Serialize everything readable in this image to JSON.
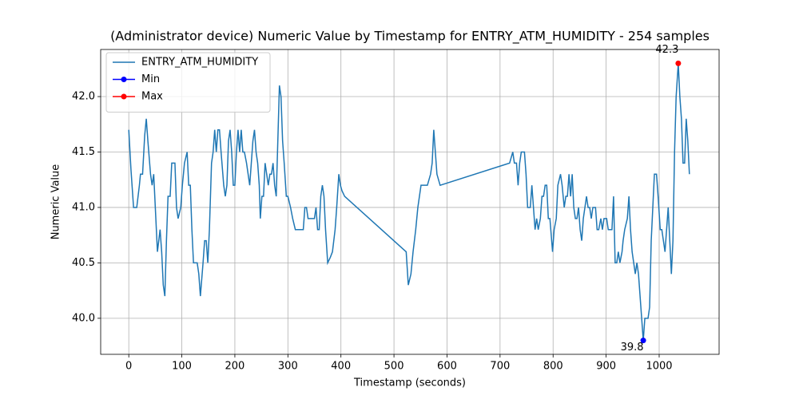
{
  "chart_data": {
    "type": "line",
    "title": "(Administrator device) Numeric Value by Timestamp for ENTRY_ATM_HUMIDITY - 254 samples",
    "xlabel": "Timestamp (seconds)",
    "ylabel": "Numeric Value",
    "xlim": [
      -53,
      1113
    ],
    "ylim": [
      39.675,
      42.425
    ],
    "xticks": [
      0,
      100,
      200,
      300,
      400,
      500,
      600,
      700,
      800,
      900,
      1000
    ],
    "yticks": [
      {
        "value": 40,
        "label": "40.0"
      },
      40.5,
      {
        "value": 41,
        "label": "41.0"
      },
      41.5,
      {
        "value": 42,
        "label": "42.0"
      }
    ],
    "grid": true,
    "legend": "upper left",
    "series": [
      {
        "name": "ENTRY_ATM_HUMIDITY",
        "color": "#1f77b4",
        "marker": false,
        "x": [
          0,
          4,
          9,
          15,
          20,
          22,
          26,
          30,
          33,
          36,
          41,
          44,
          47,
          50,
          54,
          59,
          62,
          65,
          68,
          71,
          74,
          78,
          81,
          87,
          90,
          93,
          98,
          101,
          105,
          110,
          113,
          116,
          119,
          122,
          129,
          132,
          135,
          140,
          143,
          146,
          149,
          152,
          156,
          159,
          162,
          165,
          168,
          171,
          174,
          179,
          182,
          185,
          188,
          191,
          194,
          197,
          200,
          203,
          206,
          209,
          212,
          215,
          218,
          222,
          225,
          228,
          231,
          234,
          237,
          240,
          243,
          246,
          248,
          251,
          254,
          257,
          260,
          263,
          266,
          269,
          272,
          275,
          278,
          281,
          284,
          287,
          290,
          293,
          297,
          300,
          305,
          309,
          314,
          329,
          332,
          335,
          338,
          350,
          353,
          356,
          359,
          362,
          365,
          368,
          371,
          375,
          380,
          384,
          389,
          392,
          396,
          399,
          402,
          407,
          523,
          527,
          532,
          536,
          541,
          545,
          551,
          563,
          569,
          572,
          575,
          578,
          581,
          587,
          718,
          724,
          727,
          731,
          734,
          737,
          740,
          746,
          749,
          752,
          757,
          760,
          763,
          766,
          769,
          772,
          776,
          779,
          782,
          785,
          788,
          791,
          794,
          799,
          802,
          806,
          809,
          814,
          817,
          821,
          824,
          827,
          830,
          833,
          836,
          839,
          842,
          845,
          848,
          851,
          854,
          857,
          860,
          863,
          866,
          869,
          872,
          875,
          880,
          883,
          886,
          890,
          893,
          896,
          901,
          904,
          908,
          911,
          914,
          917,
          920,
          923,
          926,
          930,
          932,
          935,
          940,
          943,
          946,
          949,
          952,
          955,
          958,
          961,
          964,
          967,
          970,
          973,
          979,
          982,
          985,
          988,
          991,
          995,
          998,
          1002,
          1005,
          1008,
          1011,
          1014,
          1017,
          1020,
          1023,
          1026,
          1029,
          1032,
          1036,
          1039,
          1042,
          1045,
          1048,
          1051,
          1054,
          1057
        ],
        "values": [
          41.7,
          41.35,
          41.0,
          41.0,
          41.2,
          41.3,
          41.3,
          41.65,
          41.8,
          41.6,
          41.3,
          41.2,
          41.3,
          41.0,
          40.6,
          40.8,
          40.6,
          40.3,
          40.2,
          40.7,
          41.1,
          41.1,
          41.4,
          41.4,
          41.0,
          40.9,
          41.0,
          41.2,
          41.4,
          41.5,
          41.2,
          41.2,
          40.8,
          40.5,
          40.5,
          40.4,
          40.2,
          40.5,
          40.7,
          40.7,
          40.5,
          40.8,
          41.4,
          41.5,
          41.7,
          41.5,
          41.7,
          41.7,
          41.5,
          41.2,
          41.1,
          41.2,
          41.6,
          41.7,
          41.5,
          41.2,
          41.2,
          41.5,
          41.7,
          41.5,
          41.7,
          41.5,
          41.5,
          41.4,
          41.3,
          41.2,
          41.4,
          41.6,
          41.7,
          41.5,
          41.4,
          41.2,
          40.9,
          41.1,
          41.1,
          41.4,
          41.3,
          41.2,
          41.3,
          41.3,
          41.4,
          41.2,
          41.1,
          41.6,
          42.1,
          42.0,
          41.6,
          41.4,
          41.1,
          41.1,
          41.0,
          40.9,
          40.8,
          40.8,
          41.0,
          41.0,
          40.9,
          40.9,
          41.0,
          40.8,
          40.8,
          41.1,
          41.2,
          41.1,
          40.8,
          40.5,
          40.55,
          40.6,
          40.8,
          41.0,
          41.3,
          41.2,
          41.15,
          41.1,
          40.6,
          40.3,
          40.4,
          40.6,
          40.8,
          41.0,
          41.2,
          41.2,
          41.3,
          41.4,
          41.7,
          41.5,
          41.3,
          41.2,
          41.4,
          41.5,
          41.4,
          41.4,
          41.2,
          41.4,
          41.5,
          41.5,
          41.3,
          41.0,
          41.0,
          41.2,
          41.0,
          40.8,
          40.9,
          40.8,
          40.9,
          41.1,
          41.1,
          41.2,
          41.2,
          40.9,
          40.9,
          40.6,
          40.8,
          40.9,
          41.2,
          41.3,
          41.2,
          41.0,
          41.1,
          41.1,
          41.3,
          41.1,
          41.3,
          41.0,
          40.9,
          40.9,
          41.0,
          40.8,
          40.7,
          40.9,
          41.0,
          41.1,
          41.0,
          41.0,
          40.9,
          41.0,
          41.0,
          40.8,
          40.8,
          40.9,
          40.8,
          40.9,
          40.9,
          40.8,
          40.8,
          40.8,
          41.1,
          40.5,
          40.5,
          40.6,
          40.5,
          40.6,
          40.7,
          40.8,
          40.9,
          41.1,
          40.8,
          40.6,
          40.5,
          40.4,
          40.5,
          40.4,
          40.2,
          40.0,
          39.8,
          40.0,
          40.0,
          40.1,
          40.7,
          41.0,
          41.3,
          41.3,
          41.1,
          40.8,
          40.8,
          40.7,
          40.6,
          40.8,
          41.0,
          40.7,
          40.4,
          40.7,
          41.5,
          42.0,
          42.3,
          42.0,
          41.8,
          41.4,
          41.4,
          41.8,
          41.6,
          41.3
        ]
      },
      {
        "name": "Min",
        "color": "#0000ff",
        "marker": true,
        "label_side": "below",
        "x": [
          970
        ],
        "values": [
          39.8
        ]
      },
      {
        "name": "Max",
        "color": "#ff0000",
        "marker": true,
        "label_side": "above",
        "x": [
          1036
        ],
        "values": [
          42.3
        ]
      }
    ]
  }
}
